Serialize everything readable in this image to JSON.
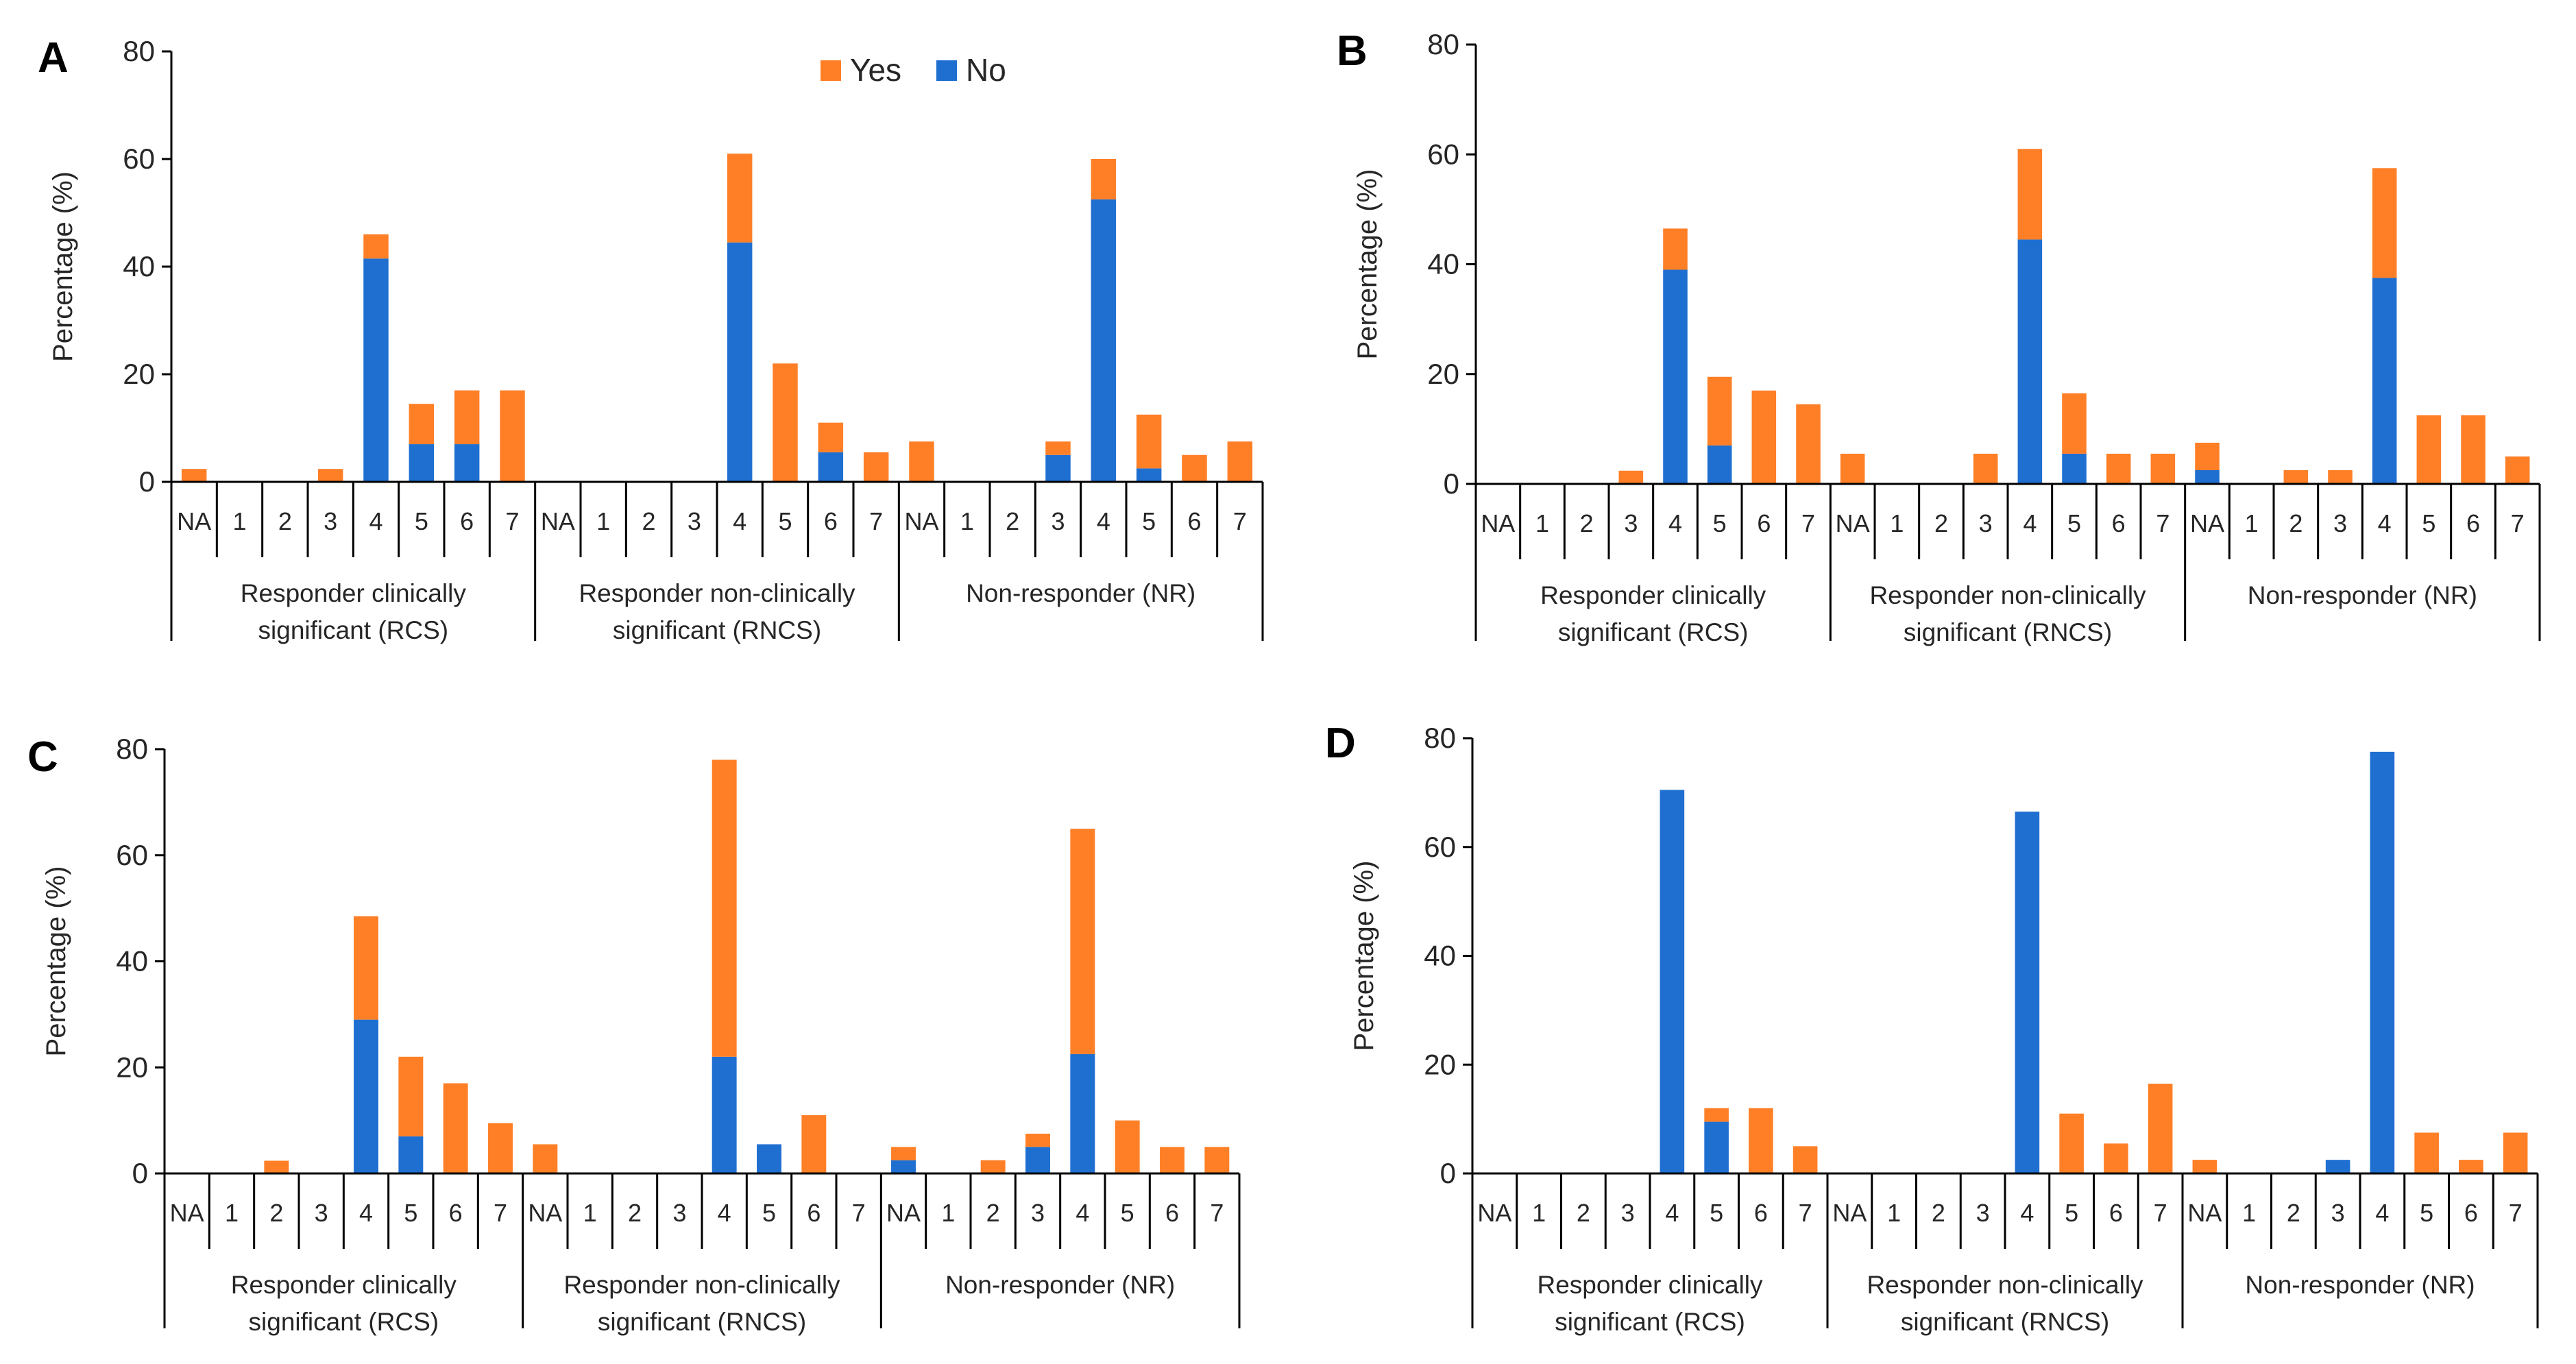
{
  "colors": {
    "yes": "#FF7F27",
    "no": "#1F6FD1",
    "axis": "#000000"
  },
  "legend": {
    "yes": "Yes",
    "no": "No"
  },
  "chart_data": [
    {
      "panel": "A",
      "type": "bar",
      "stacked": true,
      "ylabel": "Percentage (%)",
      "ylim": [
        0,
        80
      ],
      "yticks": [
        0,
        20,
        40,
        60,
        80
      ],
      "categories": [
        "NA",
        "1",
        "2",
        "3",
        "4",
        "5",
        "6",
        "7"
      ],
      "groups": [
        {
          "label": [
            "Responder clinically",
            "significant (RCS)"
          ],
          "series": [
            {
              "name": "No",
              "values": [
                0,
                0,
                0,
                0,
                41.5,
                7,
                7,
                0
              ]
            },
            {
              "name": "Yes",
              "values": [
                2.4,
                0,
                0,
                2.4,
                4.5,
                7.5,
                10,
                17
              ]
            }
          ]
        },
        {
          "label": [
            "Responder non-clinically",
            "significant (RNCS)"
          ],
          "series": [
            {
              "name": "No",
              "values": [
                0,
                0,
                0,
                0,
                44.5,
                0,
                5.5,
                0
              ]
            },
            {
              "name": "Yes",
              "values": [
                0,
                0,
                0,
                0,
                16.5,
                22,
                5.5,
                5.5
              ]
            }
          ]
        },
        {
          "label": [
            "Non-responder (NR)"
          ],
          "series": [
            {
              "name": "No",
              "values": [
                0,
                0,
                0,
                5,
                52.5,
                2.5,
                0,
                0
              ]
            },
            {
              "name": "Yes",
              "values": [
                7.5,
                0,
                0,
                2.5,
                7.5,
                10,
                5,
                7.5
              ]
            }
          ]
        }
      ]
    },
    {
      "panel": "B",
      "type": "bar",
      "stacked": true,
      "ylabel": "Percentage (%)",
      "ylim": [
        0,
        80
      ],
      "yticks": [
        0,
        20,
        40,
        60,
        80
      ],
      "categories": [
        "NA",
        "1",
        "2",
        "3",
        "4",
        "5",
        "6",
        "7"
      ],
      "groups": [
        {
          "label": [
            "Responder clinically",
            "significant (RCS)"
          ],
          "series": [
            {
              "name": "No",
              "values": [
                0,
                0,
                0,
                0,
                39,
                7,
                0,
                0
              ]
            },
            {
              "name": "Yes",
              "values": [
                0,
                0,
                0,
                2.4,
                7.5,
                12.5,
                17,
                14.5
              ]
            }
          ]
        },
        {
          "label": [
            "Responder non-clinically",
            "significant (RNCS)"
          ],
          "series": [
            {
              "name": "No",
              "values": [
                0,
                0,
                0,
                0,
                44.5,
                5.5,
                0,
                0
              ]
            },
            {
              "name": "Yes",
              "values": [
                5.5,
                0,
                0,
                5.5,
                16.5,
                11,
                5.5,
                5.5
              ]
            }
          ]
        },
        {
          "label": [
            "Non-responder (NR)"
          ],
          "series": [
            {
              "name": "No",
              "values": [
                2.5,
                0,
                0,
                0,
                37.5,
                0,
                0,
                0
              ]
            },
            {
              "name": "Yes",
              "values": [
                5,
                0,
                2.5,
                2.5,
                20,
                12.5,
                12.5,
                5
              ]
            }
          ]
        }
      ]
    },
    {
      "panel": "C",
      "type": "bar",
      "stacked": true,
      "ylabel": "Percentage (%)",
      "ylim": [
        0,
        80
      ],
      "yticks": [
        0,
        20,
        40,
        60,
        80
      ],
      "categories": [
        "NA",
        "1",
        "2",
        "3",
        "4",
        "5",
        "6",
        "7"
      ],
      "groups": [
        {
          "label": [
            "Responder clinically",
            "significant (RCS)"
          ],
          "series": [
            {
              "name": "No",
              "values": [
                0,
                0,
                0,
                0,
                29,
                7,
                0,
                0
              ]
            },
            {
              "name": "Yes",
              "values": [
                0,
                0,
                2.4,
                0,
                19.5,
                15,
                17,
                9.5
              ]
            }
          ]
        },
        {
          "label": [
            "Responder non-clinically",
            "significant (RNCS)"
          ],
          "series": [
            {
              "name": "No",
              "values": [
                0,
                0,
                0,
                0,
                22,
                5.5,
                0,
                0
              ]
            },
            {
              "name": "Yes",
              "values": [
                5.5,
                0,
                0,
                0,
                56,
                0,
                11,
                0
              ]
            }
          ]
        },
        {
          "label": [
            "Non-responder (NR)"
          ],
          "series": [
            {
              "name": "No",
              "values": [
                2.5,
                0,
                0,
                5,
                22.5,
                0,
                0,
                0
              ]
            },
            {
              "name": "Yes",
              "values": [
                2.5,
                0,
                2.5,
                2.5,
                42.5,
                10,
                5,
                5
              ]
            }
          ]
        }
      ]
    },
    {
      "panel": "D",
      "type": "bar",
      "stacked": true,
      "ylabel": "Percentage (%)",
      "ylim": [
        0,
        80
      ],
      "yticks": [
        0,
        20,
        40,
        60,
        80
      ],
      "categories": [
        "NA",
        "1",
        "2",
        "3",
        "4",
        "5",
        "6",
        "7"
      ],
      "groups": [
        {
          "label": [
            "Responder clinically",
            "significant (RCS)"
          ],
          "series": [
            {
              "name": "No",
              "values": [
                0,
                0,
                0,
                0,
                70.5,
                9.5,
                0,
                0
              ]
            },
            {
              "name": "Yes",
              "values": [
                0,
                0,
                0,
                0,
                0,
                2.5,
                12,
                5
              ]
            }
          ]
        },
        {
          "label": [
            "Responder non-clinically",
            "significant (RNCS)"
          ],
          "series": [
            {
              "name": "No",
              "values": [
                0,
                0,
                0,
                0,
                66.5,
                0,
                0,
                0
              ]
            },
            {
              "name": "Yes",
              "values": [
                0,
                0,
                0,
                0,
                0,
                11,
                5.5,
                16.5
              ]
            }
          ]
        },
        {
          "label": [
            "Non-responder (NR)"
          ],
          "series": [
            {
              "name": "No",
              "values": [
                0,
                0,
                0,
                2.5,
                77.5,
                0,
                0,
                0
              ]
            },
            {
              "name": "Yes",
              "values": [
                2.5,
                0,
                0,
                0,
                0,
                7.5,
                2.5,
                7.5
              ]
            }
          ]
        }
      ]
    }
  ]
}
